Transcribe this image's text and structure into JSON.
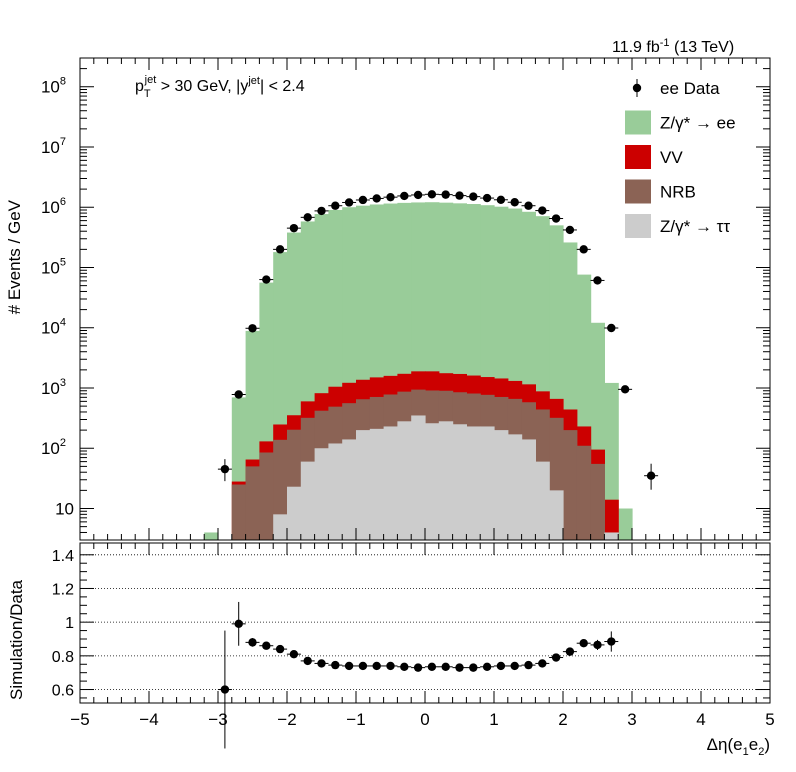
{
  "header": {
    "lumi_text": "11.9 fb",
    "lumi_sup": "-1",
    "energy_text": "(13 TeV)"
  },
  "annotation": {
    "cut_text": "p_T^jet > 30 GeV,  |y^jet| < 2.4"
  },
  "chart_data": [
    {
      "type": "bar",
      "stacked": true,
      "log_y": true,
      "ylabel": "# Events / GeV",
      "xlim": [
        -5,
        5
      ],
      "ylim": [
        3,
        300000000
      ],
      "bin_width": 0.2,
      "bin_centers": [
        -3.1,
        -2.9,
        -2.7,
        -2.5,
        -2.3,
        -2.1,
        -1.9,
        -1.7,
        -1.5,
        -1.3,
        -1.1,
        -0.9,
        -0.7,
        -0.5,
        -0.3,
        -0.1,
        0.1,
        0.3,
        0.5,
        0.7,
        0.9,
        1.1,
        1.3,
        1.5,
        1.7,
        1.9,
        2.1,
        2.3,
        2.5,
        2.7,
        2.9
      ],
      "yticks": [
        "10",
        "10^2",
        "10^3",
        "10^4",
        "10^5",
        "10^6",
        "10^7",
        "10^8"
      ],
      "legend_position": "top-right",
      "series": [
        {
          "name": "Z/γ* → ττ",
          "color": "#cccccc",
          "values": [
            0,
            0,
            0,
            0,
            0,
            8,
            23,
            60,
            100,
            120,
            140,
            200,
            210,
            230,
            280,
            350,
            260,
            280,
            250,
            230,
            230,
            200,
            170,
            140,
            60,
            20,
            0,
            0,
            0,
            4,
            0
          ]
        },
        {
          "name": "NRB",
          "color": "#8b6355",
          "values": [
            0,
            0,
            25,
            50,
            85,
            130,
            180,
            260,
            320,
            370,
            420,
            450,
            500,
            550,
            590,
            590,
            650,
            620,
            600,
            580,
            540,
            510,
            490,
            440,
            380,
            300,
            200,
            110,
            55,
            0,
            0
          ]
        },
        {
          "name": "VV",
          "color": "#cc0000",
          "values": [
            0,
            0,
            3,
            15,
            45,
            110,
            150,
            280,
            400,
            560,
            660,
            720,
            790,
            810,
            850,
            950,
            980,
            860,
            860,
            800,
            750,
            730,
            650,
            570,
            440,
            340,
            240,
            120,
            40,
            10,
            0
          ]
        },
        {
          "name": "Z/γ* → ee",
          "color": "#99cc99",
          "values": [
            4,
            2.6,
            670,
            8800,
            56000,
            180000,
            380000,
            580000,
            770000,
            900000,
            1000000,
            1060000,
            1110000,
            1150000,
            1180000,
            1200000,
            1210000,
            1190000,
            1160000,
            1130000,
            1080000,
            1020000,
            950000,
            840000,
            710000,
            500000,
            260000,
            76000,
            12000,
            1200,
            10
          ]
        }
      ],
      "data_series": {
        "name": "ee Data",
        "x": [
          -2.9,
          -2.7,
          -2.5,
          -2.3,
          -2.1,
          -1.9,
          -1.7,
          -1.5,
          -1.3,
          -1.1,
          -0.9,
          -0.7,
          -0.5,
          -0.3,
          -0.1,
          0.1,
          0.3,
          0.5,
          0.7,
          0.9,
          1.1,
          1.3,
          1.5,
          1.7,
          1.9,
          2.1,
          2.3,
          2.5,
          2.7,
          2.9
        ],
        "y": [
          45,
          780,
          9800,
          63000,
          200000,
          450000,
          680000,
          870000,
          1060000,
          1200000,
          1320000,
          1400000,
          1470000,
          1540000,
          1600000,
          1640000,
          1620000,
          1560000,
          1500000,
          1420000,
          1330000,
          1210000,
          1060000,
          880000,
          650000,
          420000,
          200000,
          61000,
          9900,
          950
        ],
        "x_extra": [
          2.9
        ],
        "y_extra": [
          35
        ]
      }
    },
    {
      "type": "scatter",
      "ylabel": "Simulation/Data",
      "xlabel": "Δη(e1e2)",
      "xlim": [
        -5,
        5
      ],
      "ylim": [
        0.52,
        1.47
      ],
      "yticks": [
        0.6,
        0.8,
        1,
        1.2,
        1.4
      ],
      "xticks": [
        -5,
        -4,
        -3,
        -2,
        -1,
        0,
        1,
        2,
        3,
        4,
        5
      ],
      "grid": "dotted-horizontal",
      "x": [
        -2.9,
        -2.7,
        -2.5,
        -2.3,
        -2.1,
        -1.9,
        -1.7,
        -1.5,
        -1.3,
        -1.1,
        -0.9,
        -0.7,
        -0.5,
        -0.3,
        -0.1,
        0.1,
        0.3,
        0.5,
        0.7,
        0.9,
        1.1,
        1.3,
        1.5,
        1.7,
        1.9,
        2.1,
        2.3,
        2.5,
        2.7
      ],
      "y": [
        0.6,
        0.99,
        0.88,
        0.86,
        0.84,
        0.81,
        0.77,
        0.755,
        0.745,
        0.74,
        0.74,
        0.74,
        0.74,
        0.735,
        0.73,
        0.735,
        0.735,
        0.73,
        0.73,
        0.735,
        0.74,
        0.74,
        0.745,
        0.755,
        0.79,
        0.825,
        0.875,
        0.865,
        0.885
      ],
      "err": [
        0.35,
        0.13,
        0.025,
        0.02,
        0.015,
        0.01,
        0.01,
        0.01,
        0.01,
        0.01,
        0.01,
        0.01,
        0.01,
        0.01,
        0.01,
        0.01,
        0.01,
        0.01,
        0.01,
        0.01,
        0.01,
        0.01,
        0.01,
        0.01,
        0.01,
        0.01,
        0.02,
        0.03,
        0.06
      ]
    }
  ]
}
